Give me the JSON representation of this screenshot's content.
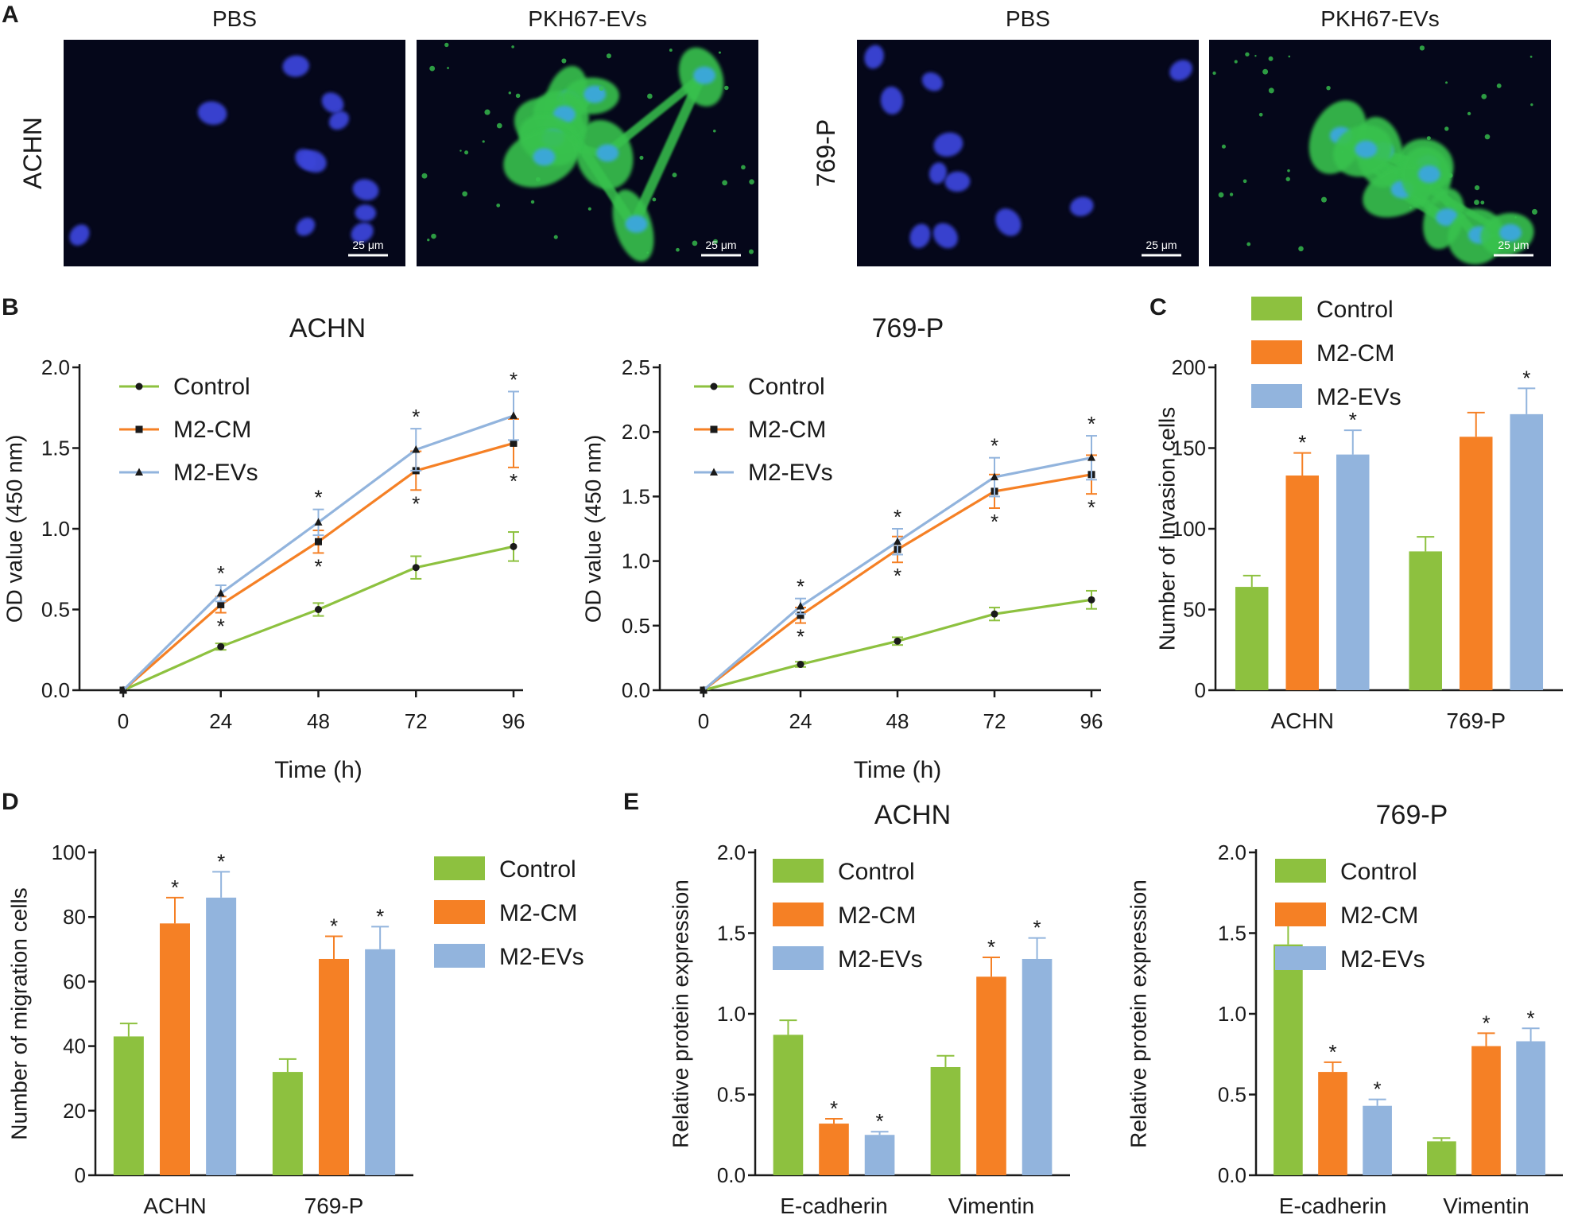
{
  "colors": {
    "control": "#8dc13f",
    "m2cm": "#f58025",
    "m2evs": "#92b4dd",
    "axis": "#1a1a1a",
    "nucleus": "#3b45d8",
    "pkh": "#37c24e",
    "micro_bg": "#05071a"
  },
  "panel_a": {
    "letter": "A",
    "cells": [
      {
        "row_label": "ACHN",
        "images": [
          {
            "title": "PBS",
            "stain": "dapi",
            "scale": "25 μm"
          },
          {
            "title": "PKH67-EVs",
            "stain": "merge",
            "scale": "25 μm"
          }
        ]
      },
      {
        "row_label": "769-P",
        "images": [
          {
            "title": "PBS",
            "stain": "dapi",
            "scale": "25 μm"
          },
          {
            "title": "PKH67-EVs",
            "stain": "merge",
            "scale": "25 μm"
          }
        ]
      }
    ]
  },
  "chart_data": [
    {
      "id": "B1",
      "panel_letter": "B",
      "type": "line",
      "title": "ACHN",
      "xlabel": "Time (h)",
      "ylabel": "OD value (450 nm)",
      "categories": [
        "0",
        "24",
        "48",
        "72",
        "96"
      ],
      "ylim": [
        0,
        2.0
      ],
      "yticks": [
        "0.0",
        "0.5",
        "1.0",
        "1.5",
        "2.0"
      ],
      "series": [
        {
          "name": "Control",
          "marker": "circle",
          "values": [
            0,
            0.27,
            0.5,
            0.76,
            0.89
          ],
          "errors": [
            0,
            0.02,
            0.04,
            0.07,
            0.09
          ]
        },
        {
          "name": "M2-CM",
          "marker": "square",
          "values": [
            0,
            0.53,
            0.92,
            1.36,
            1.53
          ],
          "errors": [
            0,
            0.05,
            0.07,
            0.12,
            0.15
          ]
        },
        {
          "name": "M2-EVs",
          "marker": "triangle",
          "values": [
            0,
            0.6,
            1.04,
            1.49,
            1.7
          ],
          "errors": [
            0,
            0.05,
            0.08,
            0.13,
            0.15
          ]
        }
      ],
      "star": "*"
    },
    {
      "id": "B2",
      "type": "line",
      "title": "769-P",
      "xlabel": "Time (h)",
      "ylabel": "OD value (450 nm)",
      "categories": [
        "0",
        "24",
        "48",
        "72",
        "96"
      ],
      "ylim": [
        0,
        2.5
      ],
      "yticks": [
        "0.0",
        "0.5",
        "1.0",
        "1.5",
        "2.0",
        "2.5"
      ],
      "series": [
        {
          "name": "Control",
          "marker": "circle",
          "values": [
            0,
            0.2,
            0.38,
            0.59,
            0.7
          ],
          "errors": [
            0,
            0.02,
            0.03,
            0.05,
            0.07
          ]
        },
        {
          "name": "M2-CM",
          "marker": "square",
          "values": [
            0,
            0.58,
            1.09,
            1.54,
            1.67
          ],
          "errors": [
            0,
            0.06,
            0.1,
            0.13,
            0.15
          ]
        },
        {
          "name": "M2-EVs",
          "marker": "triangle",
          "values": [
            0,
            0.65,
            1.15,
            1.65,
            1.8
          ],
          "errors": [
            0,
            0.06,
            0.1,
            0.15,
            0.17
          ]
        }
      ],
      "star": "*"
    },
    {
      "id": "C",
      "panel_letter": "C",
      "type": "bar",
      "title": "",
      "xlabel": "",
      "ylabel": "Number of Invasion cells",
      "categories": [
        "ACHN",
        "769-P"
      ],
      "ylim": [
        0,
        200
      ],
      "yticks": [
        "0",
        "50",
        "100",
        "150",
        "200"
      ],
      "series": [
        {
          "name": "Control",
          "values": [
            64,
            86
          ],
          "errors": [
            7,
            9
          ],
          "stars": [
            false,
            false
          ]
        },
        {
          "name": "M2-CM",
          "values": [
            133,
            157
          ],
          "errors": [
            14,
            15
          ],
          "stars": [
            true,
            false
          ]
        },
        {
          "name": "M2-EVs",
          "values": [
            146,
            171
          ],
          "errors": [
            15,
            16
          ],
          "stars": [
            true,
            true
          ]
        }
      ],
      "star": "*"
    },
    {
      "id": "D",
      "panel_letter": "D",
      "type": "bar",
      "title": "",
      "xlabel": "",
      "ylabel": "Number of migration cells",
      "categories": [
        "ACHN",
        "769-P"
      ],
      "ylim": [
        0,
        100
      ],
      "yticks": [
        "0",
        "20",
        "40",
        "60",
        "80",
        "100"
      ],
      "series": [
        {
          "name": "Control",
          "values": [
            43,
            32
          ],
          "errors": [
            4,
            4
          ],
          "stars": [
            false,
            false
          ]
        },
        {
          "name": "M2-CM",
          "values": [
            78,
            67
          ],
          "errors": [
            8,
            7
          ],
          "stars": [
            true,
            true
          ]
        },
        {
          "name": "M2-EVs",
          "values": [
            86,
            70
          ],
          "errors": [
            8,
            7
          ],
          "stars": [
            true,
            true
          ]
        }
      ],
      "star": "*"
    },
    {
      "id": "E1",
      "panel_letter": "E",
      "type": "bar",
      "title": "ACHN",
      "xlabel": "",
      "ylabel": "Relative protein expression",
      "categories": [
        "E-cadherin",
        "Vimentin"
      ],
      "ylim": [
        0,
        2.0
      ],
      "yticks": [
        "0.0",
        "0.5",
        "1.0",
        "1.5",
        "2.0"
      ],
      "series": [
        {
          "name": "Control",
          "values": [
            0.87,
            0.67
          ],
          "errors": [
            0.09,
            0.07
          ],
          "stars": [
            false,
            false
          ]
        },
        {
          "name": "M2-CM",
          "values": [
            0.32,
            1.23
          ],
          "errors": [
            0.03,
            0.12
          ],
          "stars": [
            true,
            true
          ]
        },
        {
          "name": "M2-EVs",
          "values": [
            0.25,
            1.34
          ],
          "errors": [
            0.02,
            0.13
          ],
          "stars": [
            true,
            true
          ]
        }
      ],
      "star": "*"
    },
    {
      "id": "E2",
      "type": "bar",
      "title": "769-P",
      "xlabel": "",
      "ylabel": "Relative protein expression",
      "categories": [
        "E-cadherin",
        "Vimentin"
      ],
      "ylim": [
        0,
        2.0
      ],
      "yticks": [
        "0.0",
        "0.5",
        "1.0",
        "1.5",
        "2.0"
      ],
      "series": [
        {
          "name": "Control",
          "values": [
            1.43,
            0.21
          ],
          "errors": [
            0.14,
            0.02
          ],
          "stars": [
            false,
            false
          ]
        },
        {
          "name": "M2-CM",
          "values": [
            0.64,
            0.8
          ],
          "errors": [
            0.06,
            0.08
          ],
          "stars": [
            true,
            true
          ]
        },
        {
          "name": "M2-EVs",
          "values": [
            0.43,
            0.83
          ],
          "errors": [
            0.04,
            0.08
          ],
          "stars": [
            true,
            true
          ]
        }
      ],
      "star": "*"
    }
  ]
}
